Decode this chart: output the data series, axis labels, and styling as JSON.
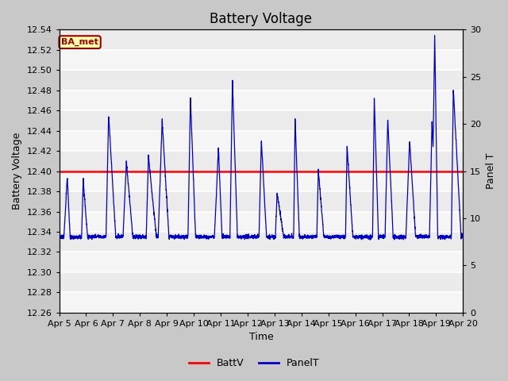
{
  "title": "Battery Voltage",
  "xlabel": "Time",
  "ylabel_left": "Battery Voltage",
  "ylabel_right": "Panel T",
  "ylim_left": [
    12.26,
    12.54
  ],
  "ylim_right": [
    0,
    30
  ],
  "yticks_left": [
    12.26,
    12.28,
    12.3,
    12.32,
    12.34,
    12.36,
    12.38,
    12.4,
    12.42,
    12.44,
    12.46,
    12.48,
    12.5,
    12.52,
    12.54
  ],
  "yticks_right": [
    0,
    5,
    10,
    15,
    20,
    25,
    30
  ],
  "x_labels": [
    "Apr 5",
    "Apr 6",
    "Apr 7",
    "Apr 8",
    "Apr 9",
    "Apr 10",
    "Apr 11",
    "Apr 12",
    "Apr 13",
    "Apr 14",
    "Apr 15",
    "Apr 16",
    "Apr 17",
    "Apr 18",
    "Apr 19",
    "Apr 20"
  ],
  "battv_value": 12.4,
  "battv_color": "#ff0000",
  "panelt_color": "#0000cc",
  "plot_bg_color": "#ebebeb",
  "fig_bg_color": "#c8c8c8",
  "ba_met_label": "BA_met",
  "ba_met_bg": "#ffffaa",
  "ba_met_border": "#990000",
  "legend_battv": "BattV",
  "legend_panelt": "PanelT",
  "title_fontsize": 12,
  "axis_label_fontsize": 9,
  "tick_fontsize": 8,
  "num_days": 15
}
